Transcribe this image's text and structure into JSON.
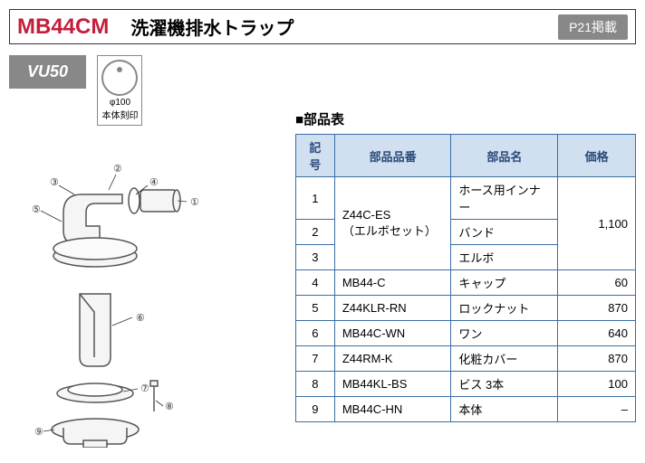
{
  "header": {
    "product_code": "MB44CM",
    "product_name": "洗濯機排水トラップ",
    "page_ref": "P21掲載"
  },
  "variant_badge": "VU50",
  "stamp": {
    "diameter": "φ100",
    "label": "本体刻印"
  },
  "parts_table": {
    "title": "■部品表",
    "headers": {
      "num": "記号",
      "code": "部品品番",
      "name": "部品名",
      "price": "価格"
    },
    "rows": [
      {
        "num": "1",
        "code": "Z44C-ES\n（エルボセット）",
        "name": "ホース用インナー",
        "price": "1,100",
        "code_rowspan": 3,
        "price_rowspan": 3
      },
      {
        "num": "2",
        "name": "バンド"
      },
      {
        "num": "3",
        "name": "エルボ"
      },
      {
        "num": "4",
        "code": "MB44-C",
        "name": "キャップ",
        "price": "60"
      },
      {
        "num": "5",
        "code": "Z44KLR-RN",
        "name": "ロックナット",
        "price": "870"
      },
      {
        "num": "6",
        "code": "MB44C-WN",
        "name": "ワン",
        "price": "640"
      },
      {
        "num": "7",
        "code": "Z44RM-K",
        "name": "化粧カバー",
        "price": "870"
      },
      {
        "num": "8",
        "code": "MB44KL-BS",
        "name": "ビス  3本",
        "price": "100"
      },
      {
        "num": "9",
        "code": "MB44C-HN",
        "name": "本体",
        "price": "–"
      }
    ],
    "col_widths": {
      "num": "40px",
      "code": "120px",
      "name": "110px",
      "price": "80px"
    },
    "header_bg": "#d0e0f0",
    "border_color": "#3a6ea5"
  },
  "diagram": {
    "callouts": [
      "①",
      "②",
      "③",
      "④",
      "⑤",
      "⑥",
      "⑦",
      "⑧",
      "⑨"
    ]
  }
}
